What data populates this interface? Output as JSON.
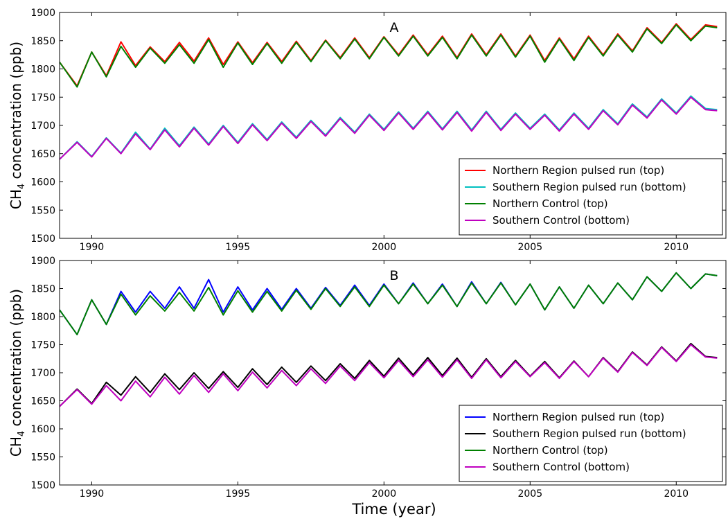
{
  "figure": {
    "xlabel": "Time (year)"
  },
  "chart_data": [
    {
      "type": "line",
      "panel_label": "A",
      "ylabel_prefix": "CH",
      "ylabel_sub": "4",
      "ylabel_suffix": " concentration (ppb)",
      "xlabel": "",
      "xlim": [
        1988.9,
        2011.7
      ],
      "ylim": [
        1500,
        1900
      ],
      "x_ticks": [
        1990,
        1995,
        2000,
        2005,
        2010
      ],
      "y_ticks": [
        1500,
        1550,
        1600,
        1650,
        1700,
        1750,
        1800,
        1850,
        1900
      ],
      "grid": false,
      "legend_position": "lower-right",
      "series": [
        {
          "name": "Northern Region pulsed run (top)",
          "color": "#ff0000",
          "x": [
            1988.9,
            1989.5,
            1990.0,
            1990.5,
            1991.0,
            1991.5,
            1992.0,
            1992.5,
            1993.0,
            1993.5,
            1994.0,
            1994.5,
            1995.0,
            1995.5,
            1996.0,
            1996.5,
            1997.0,
            1997.5,
            1998.0,
            1998.5,
            1999.0,
            1999.5,
            2000.0,
            2000.5,
            2001.0,
            2001.5,
            2002.0,
            2002.5,
            2003.0,
            2003.5,
            2004.0,
            2004.5,
            2005.0,
            2005.5,
            2006.0,
            2006.5,
            2007.0,
            2007.5,
            2008.0,
            2008.5,
            2009.0,
            2009.5,
            2010.0,
            2010.5,
            2011.0,
            2011.4
          ],
          "y": [
            1812,
            1770,
            1830,
            1788,
            1848,
            1806,
            1839,
            1813,
            1847,
            1814,
            1855,
            1808,
            1848,
            1811,
            1847,
            1813,
            1849,
            1815,
            1851,
            1820,
            1855,
            1820,
            1857,
            1825,
            1860,
            1825,
            1858,
            1820,
            1862,
            1825,
            1862,
            1823,
            1860,
            1815,
            1855,
            1818,
            1858,
            1825,
            1862,
            1832,
            1873,
            1847,
            1880,
            1852,
            1878,
            1875
          ]
        },
        {
          "name": "Southern Region pulsed run (bottom)",
          "color": "#00bfbf",
          "x": [
            1988.9,
            1989.5,
            1990.0,
            1990.5,
            1991.0,
            1991.5,
            1992.0,
            1992.5,
            1993.0,
            1993.5,
            1994.0,
            1994.5,
            1995.0,
            1995.5,
            1996.0,
            1996.5,
            1997.0,
            1997.5,
            1998.0,
            1998.5,
            1999.0,
            1999.5,
            2000.0,
            2000.5,
            2001.0,
            2001.5,
            2002.0,
            2002.5,
            2003.0,
            2003.5,
            2004.0,
            2004.5,
            2005.0,
            2005.5,
            2006.0,
            2006.5,
            2007.0,
            2007.5,
            2008.0,
            2008.5,
            2009.0,
            2009.5,
            2010.0,
            2010.5,
            2011.0,
            2011.4
          ],
          "y": [
            1640,
            1671,
            1645,
            1678,
            1651,
            1688,
            1658,
            1695,
            1664,
            1697,
            1667,
            1700,
            1670,
            1703,
            1675,
            1706,
            1679,
            1709,
            1683,
            1714,
            1688,
            1720,
            1693,
            1724,
            1695,
            1725,
            1694,
            1725,
            1692,
            1725,
            1693,
            1722,
            1695,
            1720,
            1692,
            1722,
            1695,
            1728,
            1703,
            1738,
            1715,
            1747,
            1722,
            1752,
            1730,
            1728
          ]
        },
        {
          "name": "Northern Control (top)",
          "color": "#008000",
          "x": [
            1988.9,
            1989.5,
            1990.0,
            1990.5,
            1991.0,
            1991.5,
            1992.0,
            1992.5,
            1993.0,
            1993.5,
            1994.0,
            1994.5,
            1995.0,
            1995.5,
            1996.0,
            1996.5,
            1997.0,
            1997.5,
            1998.0,
            1998.5,
            1999.0,
            1999.5,
            2000.0,
            2000.5,
            2001.0,
            2001.5,
            2002.0,
            2002.5,
            2003.0,
            2003.5,
            2004.0,
            2004.5,
            2005.0,
            2005.5,
            2006.0,
            2006.5,
            2007.0,
            2007.5,
            2008.0,
            2008.5,
            2009.0,
            2009.5,
            2010.0,
            2010.5,
            2011.0,
            2011.4
          ],
          "y": [
            1812,
            1768,
            1830,
            1786,
            1840,
            1803,
            1837,
            1810,
            1843,
            1810,
            1852,
            1803,
            1846,
            1808,
            1845,
            1810,
            1847,
            1813,
            1850,
            1818,
            1853,
            1818,
            1856,
            1823,
            1858,
            1823,
            1856,
            1818,
            1860,
            1823,
            1860,
            1821,
            1858,
            1812,
            1853,
            1815,
            1856,
            1823,
            1860,
            1830,
            1871,
            1845,
            1878,
            1850,
            1876,
            1873
          ]
        },
        {
          "name": "Southern Control (bottom)",
          "color": "#bf00bf",
          "x": [
            1988.9,
            1989.5,
            1990.0,
            1990.5,
            1991.0,
            1991.5,
            1992.0,
            1992.5,
            1993.0,
            1993.5,
            1994.0,
            1994.5,
            1995.0,
            1995.5,
            1996.0,
            1996.5,
            1997.0,
            1997.5,
            1998.0,
            1998.5,
            1999.0,
            1999.5,
            2000.0,
            2000.5,
            2001.0,
            2001.5,
            2002.0,
            2002.5,
            2003.0,
            2003.5,
            2004.0,
            2004.5,
            2005.0,
            2005.5,
            2006.0,
            2006.5,
            2007.0,
            2007.5,
            2008.0,
            2008.5,
            2009.0,
            2009.5,
            2010.0,
            2010.5,
            2011.0,
            2011.4
          ],
          "y": [
            1640,
            1670,
            1644,
            1677,
            1650,
            1685,
            1657,
            1692,
            1662,
            1695,
            1665,
            1698,
            1668,
            1701,
            1673,
            1704,
            1677,
            1707,
            1681,
            1712,
            1686,
            1718,
            1691,
            1722,
            1693,
            1723,
            1692,
            1723,
            1690,
            1723,
            1691,
            1720,
            1693,
            1718,
            1690,
            1720,
            1693,
            1726,
            1701,
            1736,
            1713,
            1745,
            1720,
            1750,
            1728,
            1726
          ]
        }
      ]
    },
    {
      "type": "line",
      "panel_label": "B",
      "ylabel_prefix": "CH",
      "ylabel_sub": "4",
      "ylabel_suffix": " concentration (ppb)",
      "xlabel": "Time (year)",
      "xlim": [
        1988.9,
        2011.7
      ],
      "ylim": [
        1500,
        1900
      ],
      "x_ticks": [
        1990,
        1995,
        2000,
        2005,
        2010
      ],
      "y_ticks": [
        1500,
        1550,
        1600,
        1650,
        1700,
        1750,
        1800,
        1850,
        1900
      ],
      "grid": false,
      "legend_position": "lower-right",
      "series": [
        {
          "name": "Northern Region pulsed run (top)",
          "color": "#0000ff",
          "x": [
            1988.9,
            1989.5,
            1990.0,
            1990.5,
            1991.0,
            1991.5,
            1992.0,
            1992.5,
            1993.0,
            1993.5,
            1994.0,
            1994.5,
            1995.0,
            1995.5,
            1996.0,
            1996.5,
            1997.0,
            1997.5,
            1998.0,
            1998.5,
            1999.0,
            1999.5,
            2000.0,
            2000.5,
            2001.0,
            2001.5,
            2002.0,
            2002.5,
            2003.0,
            2003.5,
            2004.0,
            2004.5,
            2005.0,
            2005.5,
            2006.0,
            2006.5,
            2007.0,
            2007.5,
            2008.0,
            2008.5,
            2009.0,
            2009.5,
            2010.0,
            2010.5,
            2011.0,
            2011.4
          ],
          "y": [
            1812,
            1768,
            1830,
            1786,
            1845,
            1808,
            1845,
            1815,
            1853,
            1815,
            1866,
            1808,
            1853,
            1812,
            1850,
            1813,
            1850,
            1815,
            1852,
            1820,
            1856,
            1820,
            1858,
            1823,
            1860,
            1823,
            1858,
            1818,
            1862,
            1823,
            1861,
            1821,
            1858,
            1812,
            1853,
            1815,
            1856,
            1823,
            1860,
            1830,
            1871,
            1845,
            1878,
            1850,
            1876,
            1873
          ]
        },
        {
          "name": "Southern Region pulsed run (bottom)",
          "color": "#000000",
          "x": [
            1988.9,
            1989.5,
            1990.0,
            1990.5,
            1991.0,
            1991.5,
            1992.0,
            1992.5,
            1993.0,
            1993.5,
            1994.0,
            1994.5,
            1995.0,
            1995.5,
            1996.0,
            1996.5,
            1997.0,
            1997.5,
            1998.0,
            1998.5,
            1999.0,
            1999.5,
            2000.0,
            2000.5,
            2001.0,
            2001.5,
            2002.0,
            2002.5,
            2003.0,
            2003.5,
            2004.0,
            2004.5,
            2005.0,
            2005.5,
            2006.0,
            2006.5,
            2007.0,
            2007.5,
            2008.0,
            2008.5,
            2009.0,
            2009.5,
            2010.0,
            2010.5,
            2011.0,
            2011.4
          ],
          "y": [
            1640,
            1671,
            1645,
            1683,
            1660,
            1693,
            1665,
            1698,
            1670,
            1700,
            1672,
            1702,
            1674,
            1707,
            1679,
            1710,
            1683,
            1712,
            1686,
            1716,
            1690,
            1722,
            1694,
            1726,
            1696,
            1727,
            1695,
            1726,
            1692,
            1725,
            1693,
            1722,
            1694,
            1720,
            1691,
            1721,
            1693,
            1727,
            1702,
            1737,
            1714,
            1746,
            1721,
            1752,
            1729,
            1727
          ]
        },
        {
          "name": "Northern Control (top)",
          "color": "#008000",
          "x": [
            1988.9,
            1989.5,
            1990.0,
            1990.5,
            1991.0,
            1991.5,
            1992.0,
            1992.5,
            1993.0,
            1993.5,
            1994.0,
            1994.5,
            1995.0,
            1995.5,
            1996.0,
            1996.5,
            1997.0,
            1997.5,
            1998.0,
            1998.5,
            1999.0,
            1999.5,
            2000.0,
            2000.5,
            2001.0,
            2001.5,
            2002.0,
            2002.5,
            2003.0,
            2003.5,
            2004.0,
            2004.5,
            2005.0,
            2005.5,
            2006.0,
            2006.5,
            2007.0,
            2007.5,
            2008.0,
            2008.5,
            2009.0,
            2009.5,
            2010.0,
            2010.5,
            2011.0,
            2011.4
          ],
          "y": [
            1812,
            1768,
            1830,
            1786,
            1840,
            1803,
            1837,
            1810,
            1843,
            1810,
            1852,
            1803,
            1846,
            1808,
            1845,
            1810,
            1847,
            1813,
            1850,
            1818,
            1853,
            1818,
            1856,
            1823,
            1858,
            1823,
            1856,
            1818,
            1860,
            1823,
            1860,
            1821,
            1858,
            1812,
            1853,
            1815,
            1856,
            1823,
            1860,
            1830,
            1871,
            1845,
            1878,
            1850,
            1876,
            1873
          ]
        },
        {
          "name": "Southern Control (bottom)",
          "color": "#bf00bf",
          "x": [
            1988.9,
            1989.5,
            1990.0,
            1990.5,
            1991.0,
            1991.5,
            1992.0,
            1992.5,
            1993.0,
            1993.5,
            1994.0,
            1994.5,
            1995.0,
            1995.5,
            1996.0,
            1996.5,
            1997.0,
            1997.5,
            1998.0,
            1998.5,
            1999.0,
            1999.5,
            2000.0,
            2000.5,
            2001.0,
            2001.5,
            2002.0,
            2002.5,
            2003.0,
            2003.5,
            2004.0,
            2004.5,
            2005.0,
            2005.5,
            2006.0,
            2006.5,
            2007.0,
            2007.5,
            2008.0,
            2008.5,
            2009.0,
            2009.5,
            2010.0,
            2010.5,
            2011.0,
            2011.4
          ],
          "y": [
            1640,
            1670,
            1644,
            1677,
            1650,
            1685,
            1657,
            1692,
            1662,
            1695,
            1665,
            1698,
            1668,
            1701,
            1673,
            1704,
            1677,
            1707,
            1681,
            1712,
            1686,
            1718,
            1691,
            1722,
            1693,
            1723,
            1692,
            1723,
            1690,
            1723,
            1691,
            1720,
            1693,
            1718,
            1690,
            1720,
            1693,
            1726,
            1701,
            1736,
            1713,
            1745,
            1720,
            1750,
            1728,
            1726
          ]
        }
      ]
    }
  ]
}
